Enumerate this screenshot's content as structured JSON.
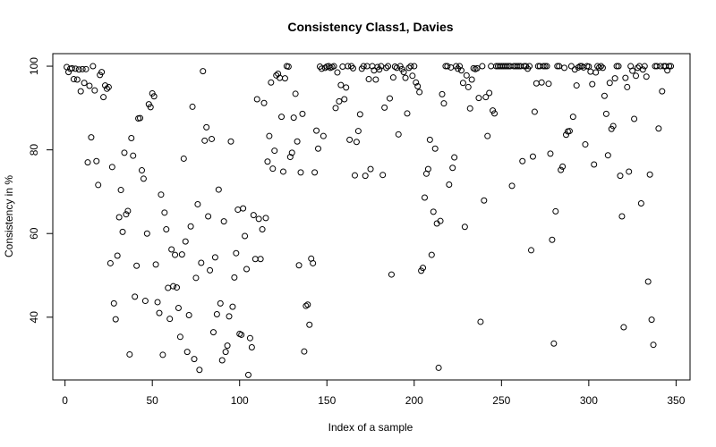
{
  "chart_data": {
    "type": "scatter",
    "title": "Consistency Class1, Davies",
    "xlabel": "Index of a sample",
    "ylabel": "Consistency in %",
    "xlim": [
      -7,
      358
    ],
    "ylim": [
      25,
      103
    ],
    "x_ticks": [
      0,
      50,
      100,
      150,
      200,
      250,
      300,
      350
    ],
    "y_ticks": [
      40,
      60,
      80,
      100
    ],
    "grid": false,
    "marker": "open-circle",
    "marker_color": "#000000",
    "points": [
      [
        1,
        99.8
      ],
      [
        2,
        98.6
      ],
      [
        3,
        99.4
      ],
      [
        4,
        99.5
      ],
      [
        5,
        96.9
      ],
      [
        6,
        99.4
      ],
      [
        7,
        96.8
      ],
      [
        8,
        99.2
      ],
      [
        9,
        94.0
      ],
      [
        10,
        99.3
      ],
      [
        11,
        96.0
      ],
      [
        12,
        99.3
      ],
      [
        13,
        77.0
      ],
      [
        14,
        95.3
      ],
      [
        15,
        83.0
      ],
      [
        16,
        100.0
      ],
      [
        17,
        94.2
      ],
      [
        18,
        77.3
      ],
      [
        19,
        71.6
      ],
      [
        20,
        97.9
      ],
      [
        21,
        98.6
      ],
      [
        22,
        92.6
      ],
      [
        23,
        95.4
      ],
      [
        24,
        94.6
      ],
      [
        25,
        95.0
      ],
      [
        26,
        52.9
      ],
      [
        27,
        75.9
      ],
      [
        28,
        43.3
      ],
      [
        29,
        39.5
      ],
      [
        30,
        54.7
      ],
      [
        31,
        63.9
      ],
      [
        32,
        70.4
      ],
      [
        33,
        60.4
      ],
      [
        34,
        79.3
      ],
      [
        35,
        64.6
      ],
      [
        36,
        65.4
      ],
      [
        37,
        31.1
      ],
      [
        38,
        82.8
      ],
      [
        39,
        78.6
      ],
      [
        40,
        44.9
      ],
      [
        41,
        52.3
      ],
      [
        42,
        87.5
      ],
      [
        43,
        87.6
      ],
      [
        44,
        75.1
      ],
      [
        45,
        73.1
      ],
      [
        46,
        43.9
      ],
      [
        47,
        60.0
      ],
      [
        48,
        90.9
      ],
      [
        49,
        90.2
      ],
      [
        50,
        93.5
      ],
      [
        51,
        92.8
      ],
      [
        52,
        52.6
      ],
      [
        53,
        43.6
      ],
      [
        54,
        41.0
      ],
      [
        55,
        69.3
      ],
      [
        56,
        31.0
      ],
      [
        57,
        65.0
      ],
      [
        58,
        61.0
      ],
      [
        59,
        47.0
      ],
      [
        60,
        39.6
      ],
      [
        61,
        56.2
      ],
      [
        62,
        47.4
      ],
      [
        63,
        54.9
      ],
      [
        64,
        47.1
      ],
      [
        65,
        42.2
      ],
      [
        66,
        35.3
      ],
      [
        67,
        55.0
      ],
      [
        68,
        77.9
      ],
      [
        69,
        58.1
      ],
      [
        70,
        31.7
      ],
      [
        71,
        40.5
      ],
      [
        72,
        61.7
      ],
      [
        73,
        90.3
      ],
      [
        74,
        30.0
      ],
      [
        75,
        49.4
      ],
      [
        76,
        67.0
      ],
      [
        77,
        27.4
      ],
      [
        78,
        53.0
      ],
      [
        79,
        98.8
      ],
      [
        80,
        82.2
      ],
      [
        81,
        85.4
      ],
      [
        82,
        64.1
      ],
      [
        83,
        51.2
      ],
      [
        84,
        82.6
      ],
      [
        85,
        36.4
      ],
      [
        86,
        54.3
      ],
      [
        87,
        40.7
      ],
      [
        88,
        70.5
      ],
      [
        89,
        43.3
      ],
      [
        90,
        29.7
      ],
      [
        91,
        62.9
      ],
      [
        92,
        31.7
      ],
      [
        93,
        33.2
      ],
      [
        94,
        40.2
      ],
      [
        95,
        82.0
      ],
      [
        96,
        42.5
      ],
      [
        97,
        49.5
      ],
      [
        98,
        55.3
      ],
      [
        99,
        65.7
      ],
      [
        100,
        36.0
      ],
      [
        101,
        35.8
      ],
      [
        102,
        66.0
      ],
      [
        103,
        59.4
      ],
      [
        104,
        51.5
      ],
      [
        105,
        26.2
      ],
      [
        106,
        35.0
      ],
      [
        107,
        32.8
      ],
      [
        108,
        64.4
      ],
      [
        109,
        53.9
      ],
      [
        110,
        92.1
      ],
      [
        111,
        63.5
      ],
      [
        112,
        53.9
      ],
      [
        113,
        61.0
      ],
      [
        114,
        91.2
      ],
      [
        115,
        63.7
      ],
      [
        116,
        77.2
      ],
      [
        117,
        83.3
      ],
      [
        118,
        96.1
      ],
      [
        119,
        75.5
      ],
      [
        120,
        79.8
      ],
      [
        121,
        97.8
      ],
      [
        122,
        98.2
      ],
      [
        123,
        97.2
      ],
      [
        124,
        87.9
      ],
      [
        125,
        74.8
      ],
      [
        126,
        97.1
      ],
      [
        127,
        100.0
      ],
      [
        128,
        99.9
      ],
      [
        129,
        78.3
      ],
      [
        130,
        79.3
      ],
      [
        131,
        87.7
      ],
      [
        132,
        93.4
      ],
      [
        133,
        82.0
      ],
      [
        134,
        52.4
      ],
      [
        135,
        74.6
      ],
      [
        136,
        88.6
      ],
      [
        137,
        31.8
      ],
      [
        138,
        42.7
      ],
      [
        139,
        43.0
      ],
      [
        140,
        38.2
      ],
      [
        141,
        54.0
      ],
      [
        142,
        52.9
      ],
      [
        143,
        74.6
      ],
      [
        144,
        84.6
      ],
      [
        145,
        80.3
      ],
      [
        146,
        99.9
      ],
      [
        147,
        99.4
      ],
      [
        148,
        83.3
      ],
      [
        149,
        99.6
      ],
      [
        150,
        99.9
      ],
      [
        151,
        100.0
      ],
      [
        152,
        99.6
      ],
      [
        153,
        99.8
      ],
      [
        154,
        100.0
      ],
      [
        155,
        90.0
      ],
      [
        156,
        98.5
      ],
      [
        157,
        91.6
      ],
      [
        158,
        95.5
      ],
      [
        159,
        99.9
      ],
      [
        160,
        92.1
      ],
      [
        161,
        94.9
      ],
      [
        162,
        100.0
      ],
      [
        163,
        82.4
      ],
      [
        164,
        100.0
      ],
      [
        165,
        99.5
      ],
      [
        166,
        73.9
      ],
      [
        167,
        81.9
      ],
      [
        168,
        84.5
      ],
      [
        169,
        88.5
      ],
      [
        170,
        99.4
      ],
      [
        171,
        100.0
      ],
      [
        172,
        73.8
      ],
      [
        173,
        100.0
      ],
      [
        174,
        96.9
      ],
      [
        175,
        75.4
      ],
      [
        176,
        100.0
      ],
      [
        177,
        99.0
      ],
      [
        178,
        96.8
      ],
      [
        179,
        99.8
      ],
      [
        180,
        99.2
      ],
      [
        181,
        100.0
      ],
      [
        182,
        74.0
      ],
      [
        183,
        90.1
      ],
      [
        184,
        99.6
      ],
      [
        185,
        100.0
      ],
      [
        186,
        92.3
      ],
      [
        187,
        50.2
      ],
      [
        188,
        97.3
      ],
      [
        189,
        99.9
      ],
      [
        190,
        99.6
      ],
      [
        191,
        83.7
      ],
      [
        192,
        100.0
      ],
      [
        193,
        99.3
      ],
      [
        194,
        98.6
      ],
      [
        195,
        97.2
      ],
      [
        196,
        88.7
      ],
      [
        197,
        99.6
      ],
      [
        198,
        100.0
      ],
      [
        199,
        97.7
      ],
      [
        200,
        100.0
      ],
      [
        201,
        96.1
      ],
      [
        202,
        95.2
      ],
      [
        203,
        93.8
      ],
      [
        204,
        51.1
      ],
      [
        205,
        51.8
      ],
      [
        206,
        68.6
      ],
      [
        207,
        74.3
      ],
      [
        208,
        75.4
      ],
      [
        209,
        82.4
      ],
      [
        210,
        54.9
      ],
      [
        211,
        65.2
      ],
      [
        212,
        80.3
      ],
      [
        213,
        62.4
      ],
      [
        214,
        27.9
      ],
      [
        215,
        63.0
      ],
      [
        216,
        93.3
      ],
      [
        217,
        91.1
      ],
      [
        218,
        100.0
      ],
      [
        219,
        100.0
      ],
      [
        220,
        71.7
      ],
      [
        221,
        99.7
      ],
      [
        222,
        75.7
      ],
      [
        223,
        78.2
      ],
      [
        224,
        100.0
      ],
      [
        225,
        99.4
      ],
      [
        226,
        100.0
      ],
      [
        227,
        99.0
      ],
      [
        228,
        96.0
      ],
      [
        229,
        61.6
      ],
      [
        230,
        97.8
      ],
      [
        231,
        95.0
      ],
      [
        232,
        89.9
      ],
      [
        233,
        96.8
      ],
      [
        234,
        99.5
      ],
      [
        235,
        99.3
      ],
      [
        236,
        99.5
      ],
      [
        237,
        92.4
      ],
      [
        238,
        38.9
      ],
      [
        239,
        100.0
      ],
      [
        240,
        67.9
      ],
      [
        241,
        92.6
      ],
      [
        242,
        83.3
      ],
      [
        243,
        93.6
      ],
      [
        244,
        100.0
      ],
      [
        245,
        89.4
      ],
      [
        246,
        88.7
      ],
      [
        247,
        100.0
      ],
      [
        248,
        100.0
      ],
      [
        249,
        100.0
      ],
      [
        250,
        100.0
      ],
      [
        251,
        100.0
      ],
      [
        252,
        100.0
      ],
      [
        253,
        100.0
      ],
      [
        254,
        100.0
      ],
      [
        255,
        100.0
      ],
      [
        256,
        71.4
      ],
      [
        257,
        100.0
      ],
      [
        258,
        100.0
      ],
      [
        259,
        100.0
      ],
      [
        260,
        100.0
      ],
      [
        261,
        100.0
      ],
      [
        262,
        77.3
      ],
      [
        263,
        100.0
      ],
      [
        264,
        100.0
      ],
      [
        265,
        99.4
      ],
      [
        266,
        100.0
      ],
      [
        267,
        56.0
      ],
      [
        268,
        78.4
      ],
      [
        269,
        89.1
      ],
      [
        270,
        95.9
      ],
      [
        271,
        100.0
      ],
      [
        272,
        100.0
      ],
      [
        273,
        96.1
      ],
      [
        274,
        100.0
      ],
      [
        275,
        100.0
      ],
      [
        276,
        100.0
      ],
      [
        277,
        95.8
      ],
      [
        278,
        79.1
      ],
      [
        279,
        58.5
      ],
      [
        280,
        33.7
      ],
      [
        281,
        65.3
      ],
      [
        282,
        100.0
      ],
      [
        283,
        100.0
      ],
      [
        284,
        75.2
      ],
      [
        285,
        76.0
      ],
      [
        286,
        99.6
      ],
      [
        287,
        83.6
      ],
      [
        288,
        84.4
      ],
      [
        289,
        84.5
      ],
      [
        290,
        100.0
      ],
      [
        291,
        87.9
      ],
      [
        292,
        99.2
      ],
      [
        293,
        95.4
      ],
      [
        294,
        99.7
      ],
      [
        295,
        100.0
      ],
      [
        296,
        100.0
      ],
      [
        297,
        99.7
      ],
      [
        298,
        81.3
      ],
      [
        299,
        100.0
      ],
      [
        300,
        99.9
      ],
      [
        301,
        98.7
      ],
      [
        302,
        95.7
      ],
      [
        303,
        76.5
      ],
      [
        304,
        98.5
      ],
      [
        305,
        100.0
      ],
      [
        306,
        99.7
      ],
      [
        307,
        100.0
      ],
      [
        308,
        99.6
      ],
      [
        309,
        92.9
      ],
      [
        310,
        88.6
      ],
      [
        311,
        78.7
      ],
      [
        312,
        96.0
      ],
      [
        313,
        85.0
      ],
      [
        314,
        85.7
      ],
      [
        315,
        97.1
      ],
      [
        316,
        100.0
      ],
      [
        317,
        100.0
      ],
      [
        318,
        73.8
      ],
      [
        319,
        64.1
      ],
      [
        320,
        37.6
      ],
      [
        321,
        97.2
      ],
      [
        322,
        95.0
      ],
      [
        323,
        74.8
      ],
      [
        324,
        100.0
      ],
      [
        325,
        98.9
      ],
      [
        326,
        87.4
      ],
      [
        327,
        97.7
      ],
      [
        328,
        99.6
      ],
      [
        329,
        100.0
      ],
      [
        330,
        67.2
      ],
      [
        331,
        99.2
      ],
      [
        332,
        100.0
      ],
      [
        333,
        97.5
      ],
      [
        334,
        48.5
      ],
      [
        335,
        74.1
      ],
      [
        336,
        39.4
      ],
      [
        337,
        33.4
      ],
      [
        338,
        100.0
      ],
      [
        339,
        100.0
      ],
      [
        340,
        85.1
      ],
      [
        341,
        100.0
      ],
      [
        342,
        94.0
      ],
      [
        343,
        100.0
      ],
      [
        344,
        100.0
      ],
      [
        345,
        99.0
      ],
      [
        346,
        100.0
      ],
      [
        347,
        100.0
      ]
    ]
  }
}
